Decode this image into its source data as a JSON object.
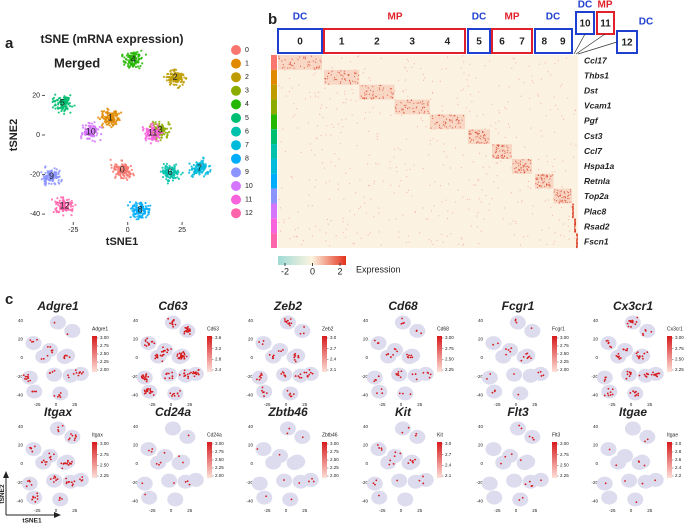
{
  "panels": {
    "a": {
      "label": "a",
      "title": "tSNE (mRNA expression)",
      "annotation": "Merged",
      "x_label": "tSNE1",
      "y_label": "tSNE2",
      "xlim": [
        -38,
        41.5
      ],
      "ylim": [
        -44,
        44
      ],
      "xticks": [
        -25,
        0,
        25
      ],
      "yticks": [
        20,
        0,
        -20,
        -40
      ],
      "clusters": [
        {
          "name": "0",
          "color": "#F8766D",
          "x": -2.5,
          "y": -17.8
        },
        {
          "name": "1",
          "color": "#E18A00",
          "x": -8,
          "y": 8.6
        },
        {
          "name": "2",
          "color": "#BE9C00",
          "x": 21.8,
          "y": 29
        },
        {
          "name": "3",
          "color": "#8CAB00",
          "x": 14.9,
          "y": 2.5
        },
        {
          "name": "4",
          "color": "#24B700",
          "x": 2.5,
          "y": 38
        },
        {
          "name": "5",
          "color": "#00BE70",
          "x": -30,
          "y": 16
        },
        {
          "name": "6",
          "color": "#00C1AB",
          "x": 19.5,
          "y": -19
        },
        {
          "name": "7",
          "color": "#00BBDA",
          "x": 33,
          "y": -17
        },
        {
          "name": "8",
          "color": "#00ACFC",
          "x": 5.7,
          "y": -38
        },
        {
          "name": "9",
          "color": "#8B93FF",
          "x": -35,
          "y": -21
        },
        {
          "name": "10",
          "color": "#D575FE",
          "x": -17,
          "y": 1.5
        },
        {
          "name": "11",
          "color": "#F962DD",
          "x": 11.5,
          "y": 1
        },
        {
          "name": "12",
          "color": "#FF65AC",
          "x": -29,
          "y": -36
        }
      ]
    },
    "b": {
      "label": "b",
      "groups": [
        {
          "label": "DC",
          "color": "#1f3fd0",
          "clusters": [
            "0"
          ]
        },
        {
          "label": "MP",
          "color": "#e0202a",
          "clusters": [
            "1",
            "2",
            "3",
            "4"
          ]
        },
        {
          "label": "DC",
          "color": "#1f3fd0",
          "clusters": [
            "5"
          ]
        },
        {
          "label": "MP",
          "color": "#e0202a",
          "clusters": [
            "6",
            "7"
          ]
        },
        {
          "label": "DC",
          "color": "#1f3fd0",
          "clusters": [
            "8",
            "9"
          ]
        },
        {
          "label": "DC",
          "color": "#1f3fd0",
          "clusters": [
            "10"
          ]
        },
        {
          "label": "MP",
          "color": "#e0202a",
          "clusters": [
            "11"
          ]
        },
        {
          "label": "DC",
          "color": "#1f3fd0",
          "clusters": [
            "12"
          ]
        }
      ],
      "genes": [
        "Ccl17",
        "Thbs1",
        "Dst",
        "Vcam1",
        "Pgf",
        "Cst3",
        "Ccl7",
        "Hspa1a",
        "Retnla",
        "Top2a",
        "Plac8",
        "Rsad2",
        "Fscn1"
      ],
      "colorbar": {
        "title": "Expression",
        "ticks": [
          -2,
          0,
          2
        ]
      }
    },
    "c": {
      "label": "c",
      "x_label": "tSNE1",
      "y_label": "tSNE2",
      "xlim": [
        -40,
        40
      ],
      "ylim": [
        -45,
        45
      ],
      "xticks": [
        -25,
        0,
        25
      ],
      "yticks": [
        40,
        20,
        0,
        -20,
        -40
      ],
      "plots": [
        {
          "gene": "Adgre1",
          "legend_ticks": [
            {
              "value": 3,
              "label": "3.00"
            },
            2.75,
            {
              "value": 2.5,
              "label": "2.50"
            },
            2.25,
            {
              "value": 2,
              "label": "2.00"
            }
          ]
        },
        {
          "gene": "Cd63",
          "legend_ticks": [
            3.6,
            3.2,
            2.8,
            2.4
          ]
        },
        {
          "gene": "Zeb2",
          "legend_ticks": [
            {
              "value": 3,
              "label": "3.0"
            },
            2.7,
            2.4,
            2.1
          ]
        },
        {
          "gene": "Cd68",
          "legend_ticks": [
            {
              "value": 3,
              "label": "3.00"
            },
            2.75,
            {
              "value": 2.5,
              "label": "2.50"
            },
            2.25
          ]
        },
        {
          "gene": "Fcgr1",
          "legend_ticks": [
            {
              "value": 3,
              "label": "3.00"
            },
            2.75,
            {
              "value": 2.5,
              "label": "2.50"
            },
            2.25,
            {
              "value": 2,
              "label": "2.00"
            }
          ]
        },
        {
          "gene": "Cx3cr1",
          "legend_ticks": [
            {
              "value": 3,
              "label": "3.00"
            },
            2.75,
            {
              "value": 2.5,
              "label": "2.50"
            },
            2.25
          ]
        },
        {
          "gene": "Itgax",
          "legend_ticks": [
            {
              "value": 3,
              "label": "3.00"
            },
            2.75,
            {
              "value": 2.5,
              "label": "2.50"
            },
            2.25
          ]
        },
        {
          "gene": "Cd24a",
          "legend_ticks": [
            {
              "value": 3,
              "label": "3.00"
            },
            2.75,
            {
              "value": 2.5,
              "label": "2.50"
            },
            2.25,
            {
              "value": 2,
              "label": "2.00"
            }
          ]
        },
        {
          "gene": "Zbtb46",
          "legend_ticks": [
            {
              "value": 3,
              "label": "3.00"
            },
            2.75,
            {
              "value": 2.5,
              "label": "2.50"
            },
            2.25,
            {
              "value": 2,
              "label": "2.00"
            }
          ]
        },
        {
          "gene": "Kit",
          "legend_ticks": [
            {
              "value": 3,
              "label": "3.0"
            },
            2.7,
            2.4,
            2.1
          ]
        },
        {
          "gene": "Flt3",
          "legend_ticks": [
            {
              "value": 3,
              "label": "3.00"
            },
            2.75,
            {
              "value": 2.5,
              "label": "2.50"
            },
            2.25
          ]
        },
        {
          "gene": "Itgae",
          "legend_ticks": [
            {
              "value": 3,
              "label": "3.0"
            },
            2.8,
            2.6,
            2.4,
            2.2
          ]
        }
      ]
    }
  }
}
